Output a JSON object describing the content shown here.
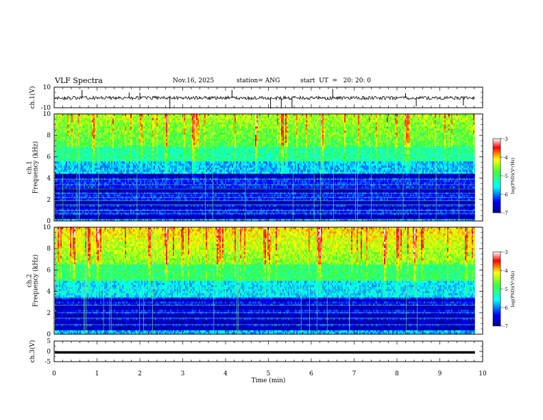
{
  "header": {
    "title": "VLF Spectra",
    "date": "Nov.16, 2025",
    "station": "station= ANG",
    "start": "start  UT  =   20: 20: 0"
  },
  "chart_data": [
    {
      "type": "line",
      "panel": "ch1-waveform",
      "ylabel": "ch.1(V)",
      "ylim": [
        -10,
        10
      ],
      "yticks": [
        "10",
        "-10"
      ],
      "baseline": -0.5,
      "spike_times_min": [
        0.65,
        1.75,
        2.0,
        2.7,
        4.15,
        5.05,
        5.3,
        5.55,
        6.5,
        8.2,
        8.45,
        9.55
      ]
    },
    {
      "type": "heatmap",
      "panel": "ch1-spectrogram",
      "ylabel": "ch.1\nFrequency (kHz)",
      "ylim": [
        0,
        10
      ],
      "yticks": [
        "0",
        "2",
        "4",
        "6",
        "8",
        "10"
      ],
      "colorbar": {
        "label": "log(PSD)(V²/Hz)",
        "range": [
          -7,
          -3
        ],
        "ticks": [
          "-3",
          "-4",
          "-5",
          "-6",
          "-7"
        ]
      },
      "strong_bursts_min": [
        0.9,
        2.6,
        3.25,
        4.7,
        5.3,
        5.4,
        6.25,
        8.2,
        8.25
      ]
    },
    {
      "type": "heatmap",
      "panel": "ch2-spectrogram",
      "ylabel": "ch.2\nFrequency (kHz)",
      "ylim": [
        0,
        10
      ],
      "yticks": [
        "0",
        "2",
        "4",
        "6",
        "8",
        "10"
      ],
      "colorbar": {
        "label": "log(PSD)(V²/Hz)",
        "range": [
          -7,
          -3
        ],
        "ticks": [
          "-3",
          "-4",
          "-5",
          "-6",
          "-7"
        ]
      },
      "strong_bursts_min": [
        0.45,
        0.8,
        1.0,
        2.6,
        3.8,
        4.9,
        5.0,
        6.2,
        7.7,
        8.0,
        8.4,
        9.6
      ]
    },
    {
      "type": "line",
      "panel": "ch3-waveform",
      "ylabel": "ch.3(V)",
      "ylim": [
        -5,
        5
      ],
      "yticks": [
        "5",
        "0",
        "-5"
      ],
      "baseline": -0.5
    }
  ],
  "xaxis": {
    "label": "Time  (min)",
    "range": [
      0,
      10
    ],
    "ticks": [
      "0",
      "1",
      "2",
      "3",
      "4",
      "5",
      "6",
      "7",
      "8",
      "9",
      "10"
    ],
    "data_end": 9.82
  }
}
